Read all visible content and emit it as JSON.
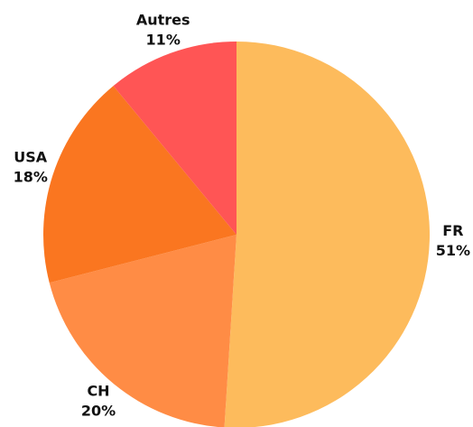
{
  "chart_data": {
    "type": "pie",
    "categories": [
      "FR",
      "CH",
      "USA",
      "Autres"
    ],
    "values": [
      51,
      20,
      18,
      11
    ],
    "value_labels": [
      "51%",
      "20%",
      "18%",
      "11%"
    ],
    "colors": [
      "#fdbb5c",
      "#ff8c45",
      "#fa7620",
      "#ff5555"
    ]
  }
}
